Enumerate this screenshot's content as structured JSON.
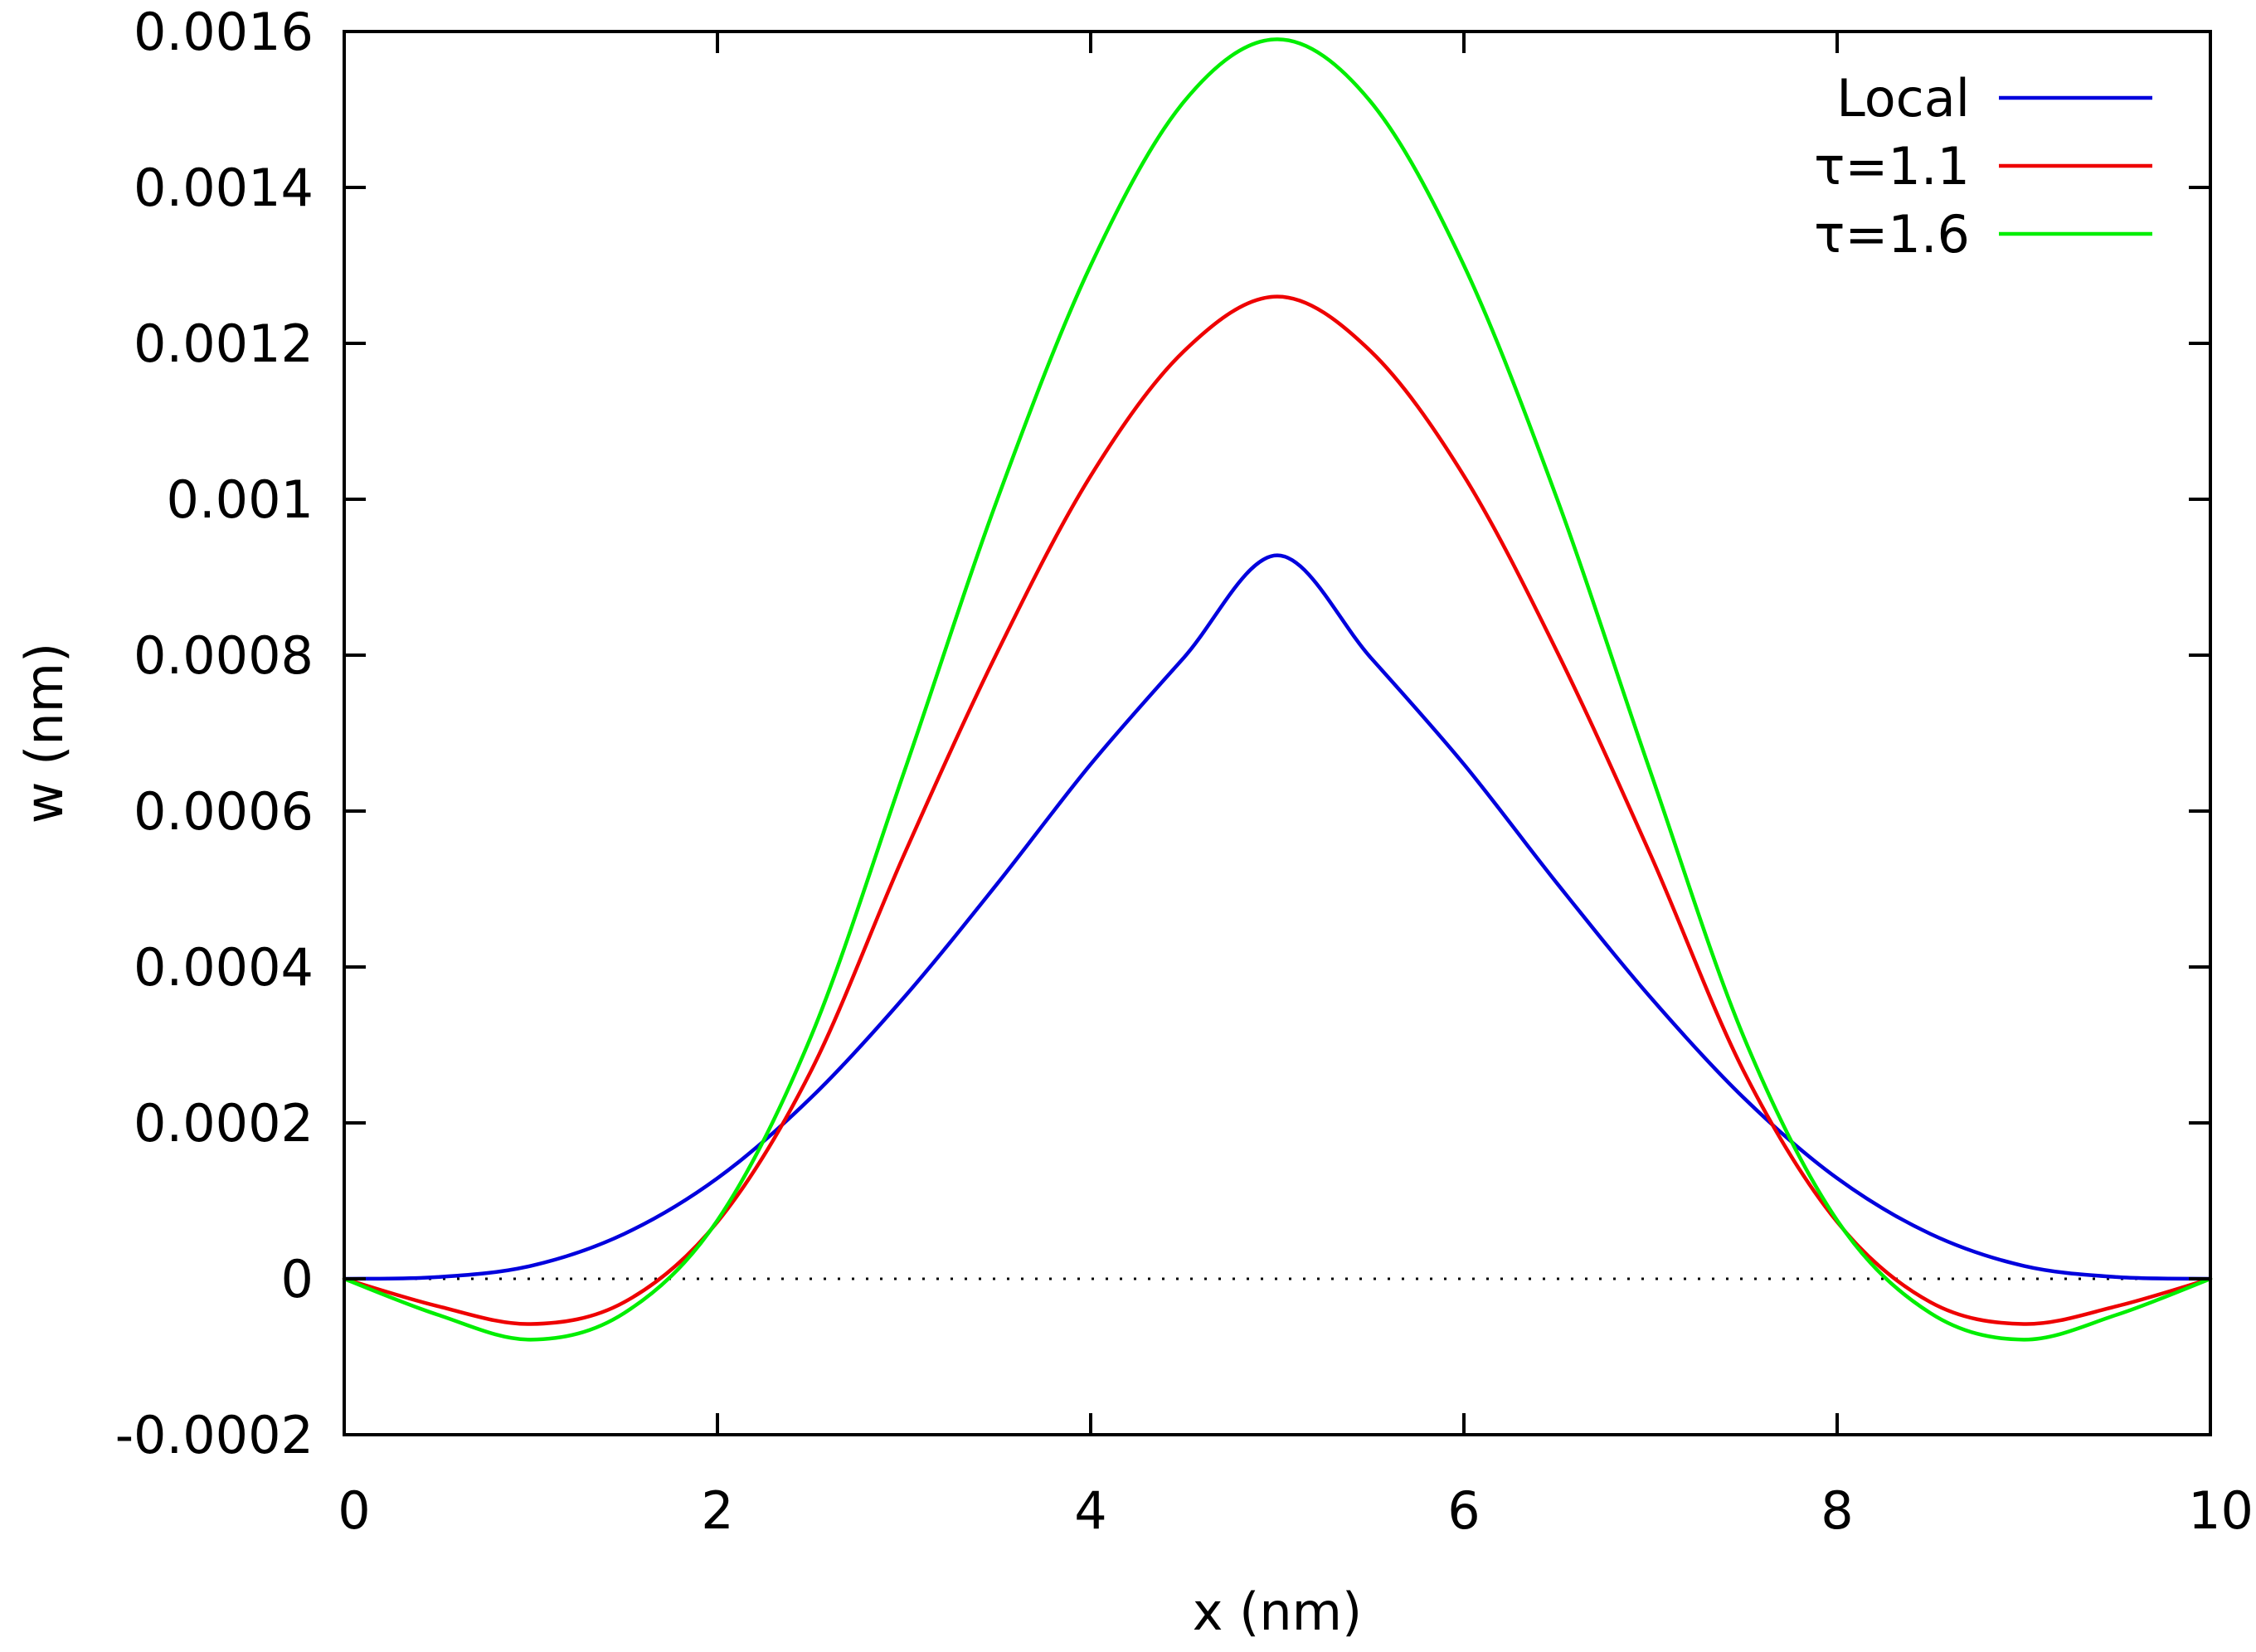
{
  "chart_data": {
    "type": "line",
    "title": "",
    "xlabel": "x (nm)",
    "ylabel": "w (nm)",
    "xlim": [
      0,
      10
    ],
    "ylim": [
      -0.0002,
      0.0016
    ],
    "xticks": [
      0,
      2,
      4,
      6,
      8,
      10
    ],
    "xtick_labels": [
      "0",
      "2",
      "4",
      "6",
      "8",
      "10"
    ],
    "yticks": [
      -0.0002,
      0,
      0.0002,
      0.0004,
      0.0006,
      0.0008,
      0.001,
      0.0012,
      0.0014,
      0.0016
    ],
    "ytick_labels": [
      "-0.0002",
      "0",
      "0.0002",
      "0.0004",
      "0.0006",
      "0.0008",
      "0.001",
      "0.0012",
      "0.0014",
      "0.0016"
    ],
    "zero_line": "dotted",
    "legend_position": "top-right",
    "series": [
      {
        "name": "Local",
        "color": "#0000dd",
        "x": [
          0,
          0.5,
          1,
          1.5,
          2,
          2.5,
          3,
          3.5,
          4,
          4.5,
          5,
          5.5,
          6,
          6.5,
          7,
          7.5,
          8,
          8.5,
          9,
          9.5,
          10
        ],
        "values": [
          0,
          2.2e-06,
          1.66e-05,
          5.76e-05,
          0.000129,
          0.000232,
          0.000361,
          0.000507,
          0.00066,
          0.000797,
          0.000928,
          0.000797,
          0.00066,
          0.000507,
          0.000361,
          0.000232,
          0.000129,
          5.76e-05,
          1.66e-05,
          2.2e-06,
          0
        ]
      },
      {
        "name": "τ=1.1",
        "color": "#ee0000",
        "x": [
          0,
          0.5,
          1,
          1.5,
          2,
          2.5,
          3,
          3.5,
          4,
          4.5,
          5,
          5.5,
          6,
          6.5,
          7,
          7.5,
          8,
          8.5,
          9,
          9.5,
          10
        ],
        "values": [
          0,
          -3.5e-05,
          -5.8e-05,
          -3e-05,
          7.3e-05,
          0.000266,
          0.000544,
          0.000804,
          0.00103,
          0.00119,
          0.00126,
          0.00119,
          0.00103,
          0.000804,
          0.000544,
          0.000266,
          7.3e-05,
          -3e-05,
          -5.8e-05,
          -3.5e-05,
          0
        ]
      },
      {
        "name": "τ=1.6",
        "color": "#00ee00",
        "x": [
          0,
          0.5,
          1,
          1.5,
          2,
          2.5,
          3,
          3.5,
          4,
          4.5,
          5,
          5.5,
          6,
          6.5,
          7,
          7.5,
          8,
          8.5,
          9,
          9.5,
          10
        ],
        "values": [
          0,
          -4.6e-05,
          -7.8e-05,
          -4.4e-05,
          7.5e-05,
          0.00031,
          0.00065,
          0.001,
          0.0013,
          0.00151,
          0.00159,
          0.00151,
          0.0013,
          0.001,
          0.00065,
          0.00031,
          7.5e-05,
          -4.4e-05,
          -7.8e-05,
          -4.6e-05,
          0
        ]
      }
    ]
  }
}
